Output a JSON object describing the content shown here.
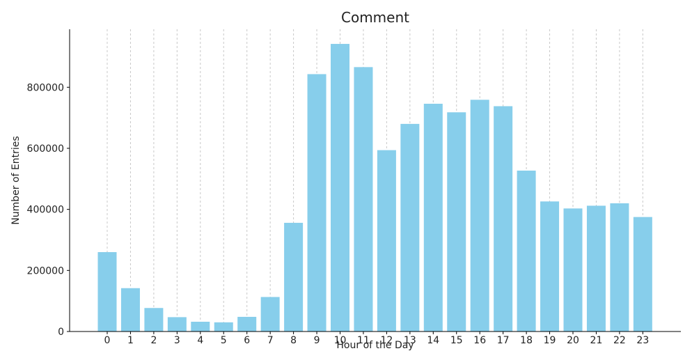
{
  "chart_data": {
    "type": "bar",
    "title": "Comment",
    "xlabel": "Hour of the Day",
    "ylabel": "Number of Entries",
    "categories": [
      "0",
      "1",
      "2",
      "3",
      "4",
      "5",
      "6",
      "7",
      "8",
      "9",
      "10",
      "11",
      "12",
      "13",
      "14",
      "15",
      "16",
      "17",
      "18",
      "19",
      "20",
      "21",
      "22",
      "23"
    ],
    "values": [
      260000,
      142000,
      77000,
      47000,
      32000,
      30000,
      48000,
      113000,
      356000,
      843000,
      942000,
      866000,
      594000,
      680000,
      746000,
      718000,
      759000,
      738000,
      527000,
      426000,
      403000,
      412000,
      420000,
      375000
    ],
    "ylim": [
      0,
      990000
    ],
    "yticks": [
      0,
      200000,
      400000,
      600000,
      800000
    ],
    "ytick_labels": [
      "0",
      "200000",
      "400000",
      "600000",
      "800000"
    ],
    "grid": "x-dashed",
    "bar_color": "#87ceeb",
    "legend": "none"
  }
}
